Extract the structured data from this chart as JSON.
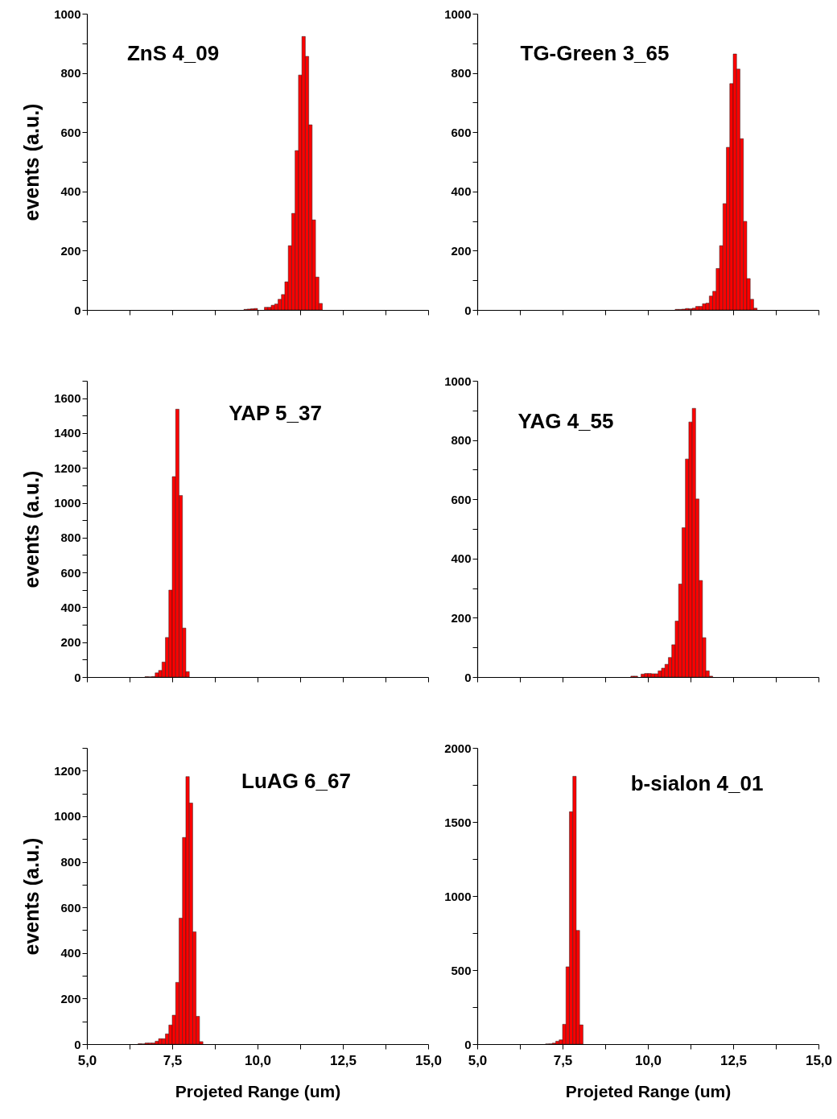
{
  "chart_data": [
    {
      "type": "histogram",
      "title": "ZnS 4_09",
      "ylabel": "events (a.u.)",
      "color": "#ff0000",
      "tick_labels": "y",
      "xticks": [
        5,
        6.25,
        7.5,
        8.75,
        10,
        11.25,
        12.5,
        13.75,
        15
      ],
      "bins": [
        9.6,
        9.7,
        9.8,
        9.9,
        10.0,
        10.1,
        10.2,
        10.3,
        10.4,
        10.5,
        10.6,
        10.7,
        10.8,
        10.9,
        11.0,
        11.1,
        11.2,
        11.3,
        11.4,
        11.5,
        11.6,
        11.7,
        11.8,
        11.9
      ],
      "values": [
        2,
        3,
        4,
        5,
        0,
        0,
        9,
        9,
        16,
        20,
        36,
        52,
        95,
        217,
        326,
        538,
        793,
        923,
        856,
        625,
        304,
        111,
        22
      ],
      "xlim": [
        5,
        15
      ],
      "ylim": [
        0,
        1000
      ],
      "yticks": [
        0,
        {
          "value": 100,
          "label": null
        },
        200,
        {
          "value": 300,
          "label": null
        },
        400,
        {
          "value": 500,
          "label": null
        },
        600,
        {
          "value": 700,
          "label": null
        },
        800,
        {
          "value": 900,
          "label": null
        },
        1000
      ]
    },
    {
      "type": "histogram",
      "title": "TG-Green 3_65",
      "color": "#ff0000",
      "tick_labels": "y",
      "xticks": [
        5,
        6.25,
        7.5,
        8.75,
        10,
        11.25,
        12.5,
        13.75,
        15
      ],
      "bins": [
        10.8,
        10.9,
        11.0,
        11.1,
        11.2,
        11.3,
        11.4,
        11.5,
        11.6,
        11.7,
        11.8,
        11.9,
        12.0,
        12.1,
        12.2,
        12.3,
        12.4,
        12.5,
        12.6,
        12.7,
        12.8,
        12.9,
        13.0,
        13.1,
        13.2
      ],
      "values": [
        2,
        2,
        3,
        5,
        4,
        6,
        12,
        12,
        21,
        23,
        47,
        63,
        140,
        217,
        359,
        549,
        764,
        864,
        813,
        578,
        299,
        106,
        36,
        6
      ],
      "xlim": [
        5,
        15
      ],
      "ylim": [
        0,
        1000
      ],
      "yticks": [
        0,
        {
          "value": 100,
          "label": null
        },
        200,
        {
          "value": 300,
          "label": null
        },
        400,
        {
          "value": 500,
          "label": null
        },
        600,
        {
          "value": 700,
          "label": null
        },
        800,
        {
          "value": 900,
          "label": null
        },
        1000
      ]
    },
    {
      "type": "histogram",
      "title": "YAP 5_37",
      "ylabel": "events (a.u.)",
      "color": "#ff0000",
      "tick_labels": "y",
      "xticks": [
        5,
        6.25,
        7.5,
        8.75,
        10,
        11.25,
        12.5,
        13.75,
        15
      ],
      "bins": [
        6.7,
        6.8,
        6.9,
        7.0,
        7.1,
        7.2,
        7.3,
        7.4,
        7.5,
        7.6,
        7.7,
        7.8,
        7.9,
        8.0
      ],
      "values": [
        2,
        1,
        3,
        24,
        38,
        86,
        227,
        499,
        1150,
        1537,
        1042,
        281,
        31
      ],
      "xlim": [
        5,
        15
      ],
      "ylim": [
        0,
        1700
      ],
      "yticks": [
        0,
        {
          "value": 100,
          "label": null
        },
        200,
        {
          "value": 300,
          "label": null
        },
        400,
        {
          "value": 500,
          "label": null
        },
        600,
        {
          "value": 700,
          "label": null
        },
        800,
        {
          "value": 900,
          "label": null
        },
        1000,
        {
          "value": 1100,
          "label": null
        },
        1200,
        {
          "value": 1300,
          "label": null
        },
        1400,
        {
          "value": 1500,
          "label": null
        },
        1600,
        {
          "value": 1700,
          "label": null
        }
      ]
    },
    {
      "type": "histogram",
      "title": "YAG 4_55",
      "color": "#ff0000",
      "tick_labels": "y",
      "xticks": [
        5,
        6.25,
        7.5,
        8.75,
        10,
        11.25,
        12.5,
        13.75,
        15
      ],
      "bins": [
        9.5,
        9.6,
        9.7,
        9.8,
        9.9,
        10.0,
        10.1,
        10.2,
        10.3,
        10.4,
        10.5,
        10.6,
        10.7,
        10.8,
        10.9,
        11.0,
        11.1,
        11.2,
        11.3,
        11.4,
        11.5,
        11.6,
        11.7,
        11.8,
        11.9
      ],
      "values": [
        3,
        3,
        0,
        10,
        12,
        12,
        11,
        11,
        21,
        30,
        43,
        66,
        109,
        189,
        314,
        504,
        736,
        861,
        907,
        601,
        326,
        133,
        21,
        3
      ],
      "xlim": [
        5,
        15
      ],
      "ylim": [
        0,
        1000
      ],
      "yticks": [
        0,
        {
          "value": 100,
          "label": null
        },
        200,
        {
          "value": 300,
          "label": null
        },
        400,
        {
          "value": 500,
          "label": null
        },
        600,
        {
          "value": 700,
          "label": null
        },
        800,
        {
          "value": 900,
          "label": null
        },
        1000
      ]
    },
    {
      "type": "histogram",
      "title": "LuAG 6_67",
      "ylabel": "events (a.u.)",
      "xlabel": "Projeted Range (um)",
      "color": "#ff0000",
      "bins": [
        6.5,
        6.6,
        6.7,
        6.8,
        6.9,
        7.0,
        7.1,
        7.2,
        7.3,
        7.4,
        7.5,
        7.6,
        7.7,
        7.8,
        7.9,
        8.0,
        8.1,
        8.2,
        8.3,
        8.4
      ],
      "values": [
        2,
        1,
        5,
        5,
        5,
        13,
        24,
        24,
        45,
        84,
        127,
        271,
        553,
        907,
        1174,
        1058,
        493,
        122,
        11
      ],
      "xlim": [
        5,
        15
      ],
      "xticks": [
        {
          "value": 5,
          "label": "5,0"
        },
        {
          "value": 6.25,
          "label": null
        },
        {
          "value": 7.5,
          "label": "7,5"
        },
        {
          "value": 8.75,
          "label": null
        },
        {
          "value": 10,
          "label": "10,0"
        },
        {
          "value": 11.25,
          "label": null
        },
        {
          "value": 12.5,
          "label": "12,5"
        },
        {
          "value": 13.75,
          "label": null
        },
        {
          "value": 15,
          "label": "15,0"
        }
      ],
      "ylim": [
        0,
        1300
      ],
      "yticks": [
        0,
        {
          "value": 100,
          "label": null
        },
        200,
        {
          "value": 300,
          "label": null
        },
        400,
        {
          "value": 500,
          "label": null
        },
        600,
        {
          "value": 700,
          "label": null
        },
        800,
        {
          "value": 900,
          "label": null
        },
        1000,
        {
          "value": 1100,
          "label": null
        },
        1200,
        {
          "value": 1300,
          "label": null
        }
      ]
    },
    {
      "type": "histogram",
      "title": "b-sialon 4_01",
      "xlabel": "Projeted Range (um)",
      "color": "#ff0000",
      "bins": [
        7.0,
        7.1,
        7.2,
        7.3,
        7.4,
        7.5,
        7.6,
        7.7,
        7.8,
        7.9,
        8.0,
        8.1
      ],
      "values": [
        1,
        2,
        7,
        20,
        29,
        134,
        522,
        1569,
        1808,
        768,
        130
      ],
      "xlim": [
        5,
        15
      ],
      "xticks": [
        {
          "value": 5,
          "label": "5,0"
        },
        {
          "value": 6.25,
          "label": null
        },
        {
          "value": 7.5,
          "label": "7,5"
        },
        {
          "value": 8.75,
          "label": null
        },
        {
          "value": 10,
          "label": "10,0"
        },
        {
          "value": 11.25,
          "label": null
        },
        {
          "value": 12.5,
          "label": "12,5"
        },
        {
          "value": 13.75,
          "label": null
        },
        {
          "value": 15,
          "label": "15,0"
        }
      ],
      "ylim": [
        0,
        2000
      ],
      "yticks": [
        0,
        {
          "value": 250,
          "label": null
        },
        500,
        {
          "value": 750,
          "label": null
        },
        1000,
        {
          "value": 1250,
          "label": null
        },
        1500,
        {
          "value": 1750,
          "label": null
        },
        2000
      ]
    }
  ]
}
